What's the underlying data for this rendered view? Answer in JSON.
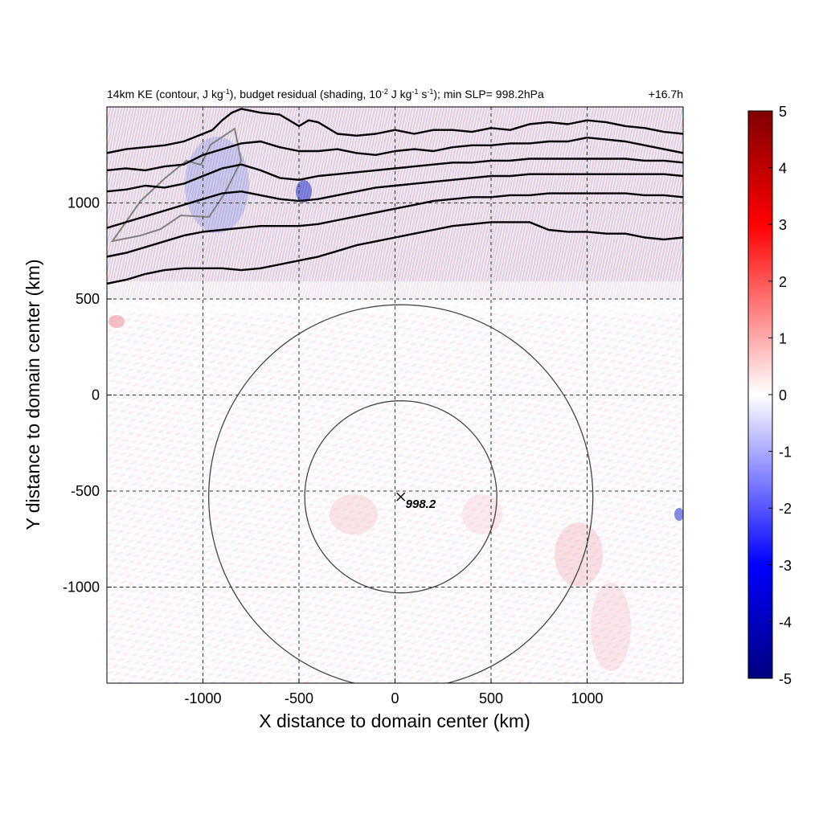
{
  "chart_data": {
    "type": "heatmap",
    "title_main": "14km KE (contour, J kg",
    "title_sup1": "-1",
    "title_mid": "), budget residual (shading, 10",
    "title_sup2": "-2",
    "title_mid2": " J kg",
    "title_sup3": "-1",
    "title_mid3": " s",
    "title_sup4": "-1",
    "title_end": "); min SLP= 998.2hPa",
    "time_label": "+16.7h",
    "xlabel": "X distance to domain center (km)",
    "ylabel": "Y distance to domain center (km)",
    "xlim": [
      -1500,
      1500
    ],
    "ylim": [
      -1500,
      1500
    ],
    "xticks": [
      -1000,
      -500,
      0,
      500,
      1000
    ],
    "yticks": [
      1000,
      500,
      0,
      -500,
      -1000
    ],
    "xtick_labels": [
      "-1000",
      "-500",
      "0",
      "500",
      "1000"
    ],
    "ytick_labels": [
      "1000",
      "500",
      "0",
      "-500",
      "-1000"
    ],
    "grid": true,
    "colorbar": {
      "min": -5,
      "max": 5,
      "ticks": [
        "5",
        "4",
        "3",
        "2",
        "1",
        "0",
        "-1",
        "-2",
        "-3",
        "-4",
        "-5"
      ],
      "colors": [
        "#00007f",
        "#0000ff",
        "#ffffff",
        "#ff0000",
        "#7f0000"
      ]
    },
    "center_marker": {
      "x": 30,
      "y": -530,
      "label": "998.2"
    },
    "range_circles_km": [
      500,
      1000
    ],
    "ke_contours": [
      [
        [
          -1500,
          1260
        ],
        [
          -1400,
          1280
        ],
        [
          -1300,
          1290
        ],
        [
          -1200,
          1300
        ],
        [
          -1100,
          1320
        ],
        [
          -1000,
          1360
        ],
        [
          -950,
          1380
        ],
        [
          -900,
          1430
        ],
        [
          -850,
          1470
        ],
        [
          -800,
          1490
        ],
        [
          -700,
          1470
        ],
        [
          -600,
          1460
        ],
        [
          -500,
          1400
        ],
        [
          -450,
          1430
        ],
        [
          -400,
          1420
        ],
        [
          -300,
          1360
        ],
        [
          -200,
          1350
        ],
        [
          -100,
          1360
        ],
        [
          0,
          1380
        ],
        [
          100,
          1360
        ],
        [
          200,
          1380
        ],
        [
          300,
          1380
        ],
        [
          400,
          1370
        ],
        [
          500,
          1390
        ],
        [
          600,
          1380
        ],
        [
          700,
          1410
        ],
        [
          800,
          1420
        ],
        [
          900,
          1410
        ],
        [
          1000,
          1430
        ],
        [
          1100,
          1420
        ],
        [
          1200,
          1400
        ],
        [
          1300,
          1390
        ],
        [
          1400,
          1370
        ],
        [
          1500,
          1360
        ]
      ],
      [
        [
          -1500,
          1170
        ],
        [
          -1400,
          1180
        ],
        [
          -1300,
          1170
        ],
        [
          -1200,
          1190
        ],
        [
          -1100,
          1200
        ],
        [
          -1000,
          1250
        ],
        [
          -900,
          1280
        ],
        [
          -800,
          1310
        ],
        [
          -700,
          1320
        ],
        [
          -600,
          1290
        ],
        [
          -500,
          1270
        ],
        [
          -400,
          1270
        ],
        [
          -300,
          1280
        ],
        [
          -200,
          1260
        ],
        [
          -100,
          1250
        ],
        [
          0,
          1270
        ],
        [
          100,
          1280
        ],
        [
          200,
          1270
        ],
        [
          300,
          1290
        ],
        [
          400,
          1300
        ],
        [
          500,
          1300
        ],
        [
          600,
          1310
        ],
        [
          700,
          1310
        ],
        [
          800,
          1320
        ],
        [
          900,
          1320
        ],
        [
          1000,
          1340
        ],
        [
          1100,
          1330
        ],
        [
          1200,
          1320
        ],
        [
          1300,
          1300
        ],
        [
          1400,
          1280
        ],
        [
          1500,
          1260
        ]
      ],
      [
        [
          -1500,
          1060
        ],
        [
          -1400,
          1070
        ],
        [
          -1300,
          1090
        ],
        [
          -1200,
          1080
        ],
        [
          -1100,
          1100
        ],
        [
          -1000,
          1140
        ],
        [
          -900,
          1180
        ],
        [
          -800,
          1200
        ],
        [
          -700,
          1170
        ],
        [
          -600,
          1130
        ],
        [
          -500,
          1120
        ],
        [
          -400,
          1140
        ],
        [
          -300,
          1150
        ],
        [
          -200,
          1160
        ],
        [
          -100,
          1170
        ],
        [
          0,
          1180
        ],
        [
          100,
          1190
        ],
        [
          200,
          1200
        ],
        [
          300,
          1210
        ],
        [
          400,
          1210
        ],
        [
          500,
          1220
        ],
        [
          600,
          1220
        ],
        [
          700,
          1230
        ],
        [
          800,
          1230
        ],
        [
          900,
          1230
        ],
        [
          1000,
          1230
        ],
        [
          1100,
          1230
        ],
        [
          1200,
          1230
        ],
        [
          1300,
          1220
        ],
        [
          1400,
          1220
        ],
        [
          1500,
          1210
        ]
      ],
      [
        [
          -1500,
          870
        ],
        [
          -1400,
          900
        ],
        [
          -1300,
          930
        ],
        [
          -1200,
          960
        ],
        [
          -1100,
          990
        ],
        [
          -1000,
          1020
        ],
        [
          -900,
          1050
        ],
        [
          -800,
          1060
        ],
        [
          -700,
          1040
        ],
        [
          -600,
          1020
        ],
        [
          -500,
          1010
        ],
        [
          -400,
          1020
        ],
        [
          -300,
          1040
        ],
        [
          -200,
          1060
        ],
        [
          -100,
          1080
        ],
        [
          0,
          1090
        ],
        [
          100,
          1100
        ],
        [
          200,
          1110
        ],
        [
          300,
          1120
        ],
        [
          400,
          1130
        ],
        [
          500,
          1140
        ],
        [
          600,
          1140
        ],
        [
          700,
          1150
        ],
        [
          800,
          1150
        ],
        [
          900,
          1150
        ],
        [
          1000,
          1150
        ],
        [
          1100,
          1150
        ],
        [
          1200,
          1150
        ],
        [
          1300,
          1150
        ],
        [
          1400,
          1150
        ],
        [
          1500,
          1140
        ]
      ],
      [
        [
          -1500,
          720
        ],
        [
          -1400,
          740
        ],
        [
          -1300,
          770
        ],
        [
          -1200,
          800
        ],
        [
          -1100,
          830
        ],
        [
          -1000,
          850
        ],
        [
          -900,
          860
        ],
        [
          -800,
          870
        ],
        [
          -700,
          880
        ],
        [
          -600,
          880
        ],
        [
          -500,
          880
        ],
        [
          -400,
          890
        ],
        [
          -300,
          910
        ],
        [
          -200,
          930
        ],
        [
          -100,
          950
        ],
        [
          0,
          970
        ],
        [
          100,
          990
        ],
        [
          200,
          1010
        ],
        [
          300,
          1020
        ],
        [
          400,
          1030
        ],
        [
          500,
          1030
        ],
        [
          600,
          1040
        ],
        [
          700,
          1040
        ],
        [
          800,
          1050
        ],
        [
          900,
          1050
        ],
        [
          1000,
          1050
        ],
        [
          1100,
          1050
        ],
        [
          1200,
          1050
        ],
        [
          1300,
          1040
        ],
        [
          1400,
          1040
        ],
        [
          1500,
          1030
        ]
      ],
      [
        [
          -1500,
          580
        ],
        [
          -1400,
          600
        ],
        [
          -1300,
          630
        ],
        [
          -1200,
          650
        ],
        [
          -1100,
          660
        ],
        [
          -1000,
          660
        ],
        [
          -900,
          660
        ],
        [
          -800,
          650
        ],
        [
          -700,
          660
        ],
        [
          -600,
          680
        ],
        [
          -500,
          700
        ],
        [
          -400,
          720
        ],
        [
          -300,
          750
        ],
        [
          -200,
          780
        ],
        [
          -100,
          800
        ],
        [
          0,
          820
        ],
        [
          100,
          840
        ],
        [
          200,
          860
        ],
        [
          300,
          880
        ],
        [
          400,
          890
        ],
        [
          500,
          900
        ],
        [
          600,
          900
        ],
        [
          700,
          900
        ],
        [
          750,
          880
        ],
        [
          800,
          860
        ],
        [
          900,
          850
        ],
        [
          1000,
          850
        ],
        [
          1100,
          840
        ],
        [
          1200,
          840
        ],
        [
          1300,
          820
        ],
        [
          1400,
          810
        ],
        [
          1500,
          820
        ]
      ]
    ]
  }
}
